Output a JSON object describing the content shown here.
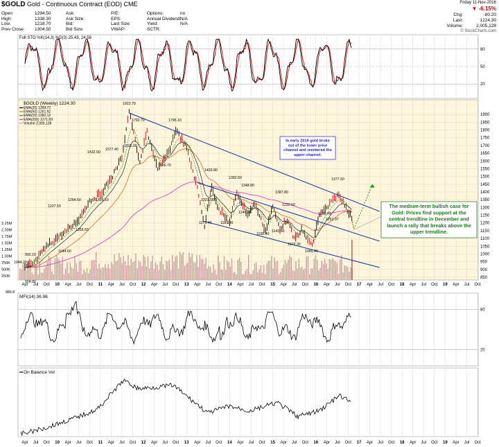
{
  "header": {
    "symbol": "$GOLD",
    "description": "Gold - Continuous Contract (EOD)",
    "exchange": "CME",
    "fields_left": [
      {
        "label": "Open:",
        "value": "1294.50"
      },
      {
        "label": "High:",
        "value": "1338.30"
      },
      {
        "label": "Low:",
        "value": "1218.70"
      },
      {
        "label": "Prev Close:",
        "value": "1304.50"
      }
    ],
    "fields_mid1": [
      {
        "label": "Ask:",
        "value": ""
      },
      {
        "label": "Ask Size:",
        "value": ""
      },
      {
        "label": "Bid:",
        "value": ""
      },
      {
        "label": "Bid Size:",
        "value": ""
      }
    ],
    "fields_mid2": [
      {
        "label": "P/E:",
        "value": ""
      },
      {
        "label": "EPS:",
        "value": ""
      },
      {
        "label": "Last Size:",
        "value": ""
      },
      {
        "label": "VWAP:",
        "value": ""
      }
    ],
    "fields_mid3": [
      {
        "label": "Options:",
        "value": "no"
      },
      {
        "label": "Annual Dividend:",
        "value": "N/A"
      },
      {
        "label": "Yield:",
        "value": "N/A"
      },
      {
        "label": "SCTR:",
        "value": ""
      }
    ],
    "date": "Friday 11-Nov-2016",
    "change_pct": "-6.15%",
    "chg_label": "Chg:",
    "chg_value": "-80.20",
    "last_label": "Last:",
    "last_value": "1224.30",
    "volume_label": "Volume:",
    "volume_value": "2,005,128",
    "brand": "© StockCharts.com"
  },
  "sto_panel": {
    "legend": "Full STO %K(14,3) %D(3) 25.43, 24.56",
    "levels": [
      "80",
      "50",
      "20"
    ]
  },
  "price_panel": {
    "legend_title": "$GOLD (Weekly) 1224.30",
    "legend_items": [
      {
        "text": "EMA(20) 1289.72",
        "color": "#000000"
      },
      {
        "text": "EMA(50) 1261.92",
        "color": "#d2691e"
      },
      {
        "text": "EMA(10) 1282.12",
        "color": "#228b22"
      },
      {
        "text": "EMA(200) 1271.69",
        "color": "#e040c0"
      },
      {
        "text": "Volume 2,005,128",
        "color": "#d9a0a0"
      }
    ],
    "price_ticks": [
      "1900",
      "1850",
      "1800",
      "1750",
      "1700",
      "1650",
      "1600",
      "1550",
      "1500",
      "1450",
      "1400",
      "1350",
      "1300",
      "1250",
      "1200",
      "1150",
      "1100",
      "1050",
      "1000",
      "950",
      "900",
      "850"
    ],
    "volume_ticks": [
      "2.25M",
      "2.00M",
      "1.75M",
      "1.50M",
      "1.25M",
      "1.00M",
      "750K",
      "500K",
      "250K"
    ],
    "peak_labels": [
      "1923.70",
      "1792.70",
      "1796.10",
      "1577.40",
      "1535.00",
      "1526.70",
      "1432.50",
      "1309.10",
      "1264.50",
      "1227.50",
      "1355.60",
      "1044.50",
      "1044.20",
      "992.10",
      "904.80",
      "889.8",
      "1433.80",
      "1321.50",
      "1179.40",
      "1181.40",
      "1392.60",
      "1348.80",
      "1387.80",
      "1246.20",
      "1232.60",
      "1158.40",
      "1143.60",
      "1072.30",
      "1045.40",
      "1191.70",
      "1377.50",
      "1251.07"
    ],
    "annotation_channel": "In early 2016 gold broke out of the lower price channel and reentered the upper channel.",
    "annotation_bullish": "The medium-term bullish case for Gold: Prices find support at the central trendline in December and launch a rally that breaks above the upper trendline."
  },
  "date_axis": [
    "Apr",
    "Jul",
    "Oct",
    "10",
    "Apr",
    "Jul",
    "Oct",
    "11",
    "Apr",
    "Jul",
    "Oct",
    "12",
    "Apr",
    "Jul",
    "Oct",
    "13",
    "Apr",
    "Jul",
    "Oct",
    "14",
    "Apr",
    "Jul",
    "Oct",
    "15",
    "Apr",
    "Jul",
    "Oct",
    "16",
    "Apr",
    "Jul",
    "Oct",
    "17",
    "Apr",
    "Jul",
    "Oct",
    "18",
    "Apr",
    "Jul",
    "Oct",
    "19",
    "Apr",
    "Jul",
    "Oct"
  ],
  "mfi_panel": {
    "legend": "MFI(14) 36.96",
    "levels": [
      "80",
      "20"
    ]
  },
  "obv_panel": {
    "legend": "On Balance Vol"
  },
  "colors": {
    "price_bg": "#fdf6dc",
    "channel": "#1e3fa0",
    "annotation_blue": "#1c1ccd",
    "annotation_green": "#1a7a1a",
    "negative": "#d00000",
    "sto_k": "#000000",
    "sto_d": "#d00000",
    "ema200": "#e040c0",
    "ema50": "#d2691e",
    "ema10": "#228b22",
    "volume": "#c8a0a0"
  },
  "chart_data": [
    {
      "type": "line",
      "title": "$GOLD (Weekly) 1224.30",
      "panel": "price",
      "x_dates": [
        "2009-04",
        "2009-07",
        "2009-10",
        "2010-01",
        "2010-04",
        "2010-07",
        "2010-10",
        "2011-01",
        "2011-04",
        "2011-07",
        "2011-09",
        "2011-12",
        "2012-02",
        "2012-05",
        "2012-08",
        "2012-10",
        "2013-01",
        "2013-04",
        "2013-06",
        "2013-08",
        "2013-10",
        "2014-01",
        "2014-03",
        "2014-06",
        "2014-08",
        "2014-11",
        "2015-01",
        "2015-03",
        "2015-05",
        "2015-07",
        "2015-09",
        "2015-12",
        "2016-02",
        "2016-04",
        "2016-07",
        "2016-09",
        "2016-11"
      ],
      "price": [
        904.8,
        950,
        1044.5,
        1100,
        1150,
        1220,
        1340,
        1380,
        1480,
        1620,
        1923.7,
        1577.4,
        1792.7,
        1535,
        1650,
        1796.1,
        1680,
        1420,
        1179.4,
        1433.8,
        1280,
        1200,
        1392.6,
        1250,
        1320,
        1143.6,
        1300,
        1160,
        1220,
        1090,
        1150,
        1045.4,
        1250,
        1290,
        1377.5,
        1320,
        1224.3
      ],
      "channel_lines": [
        {
          "name": "upper",
          "points": [
            [
              "2011-09",
              1910
            ],
            [
              "2016-11",
              1345
            ]
          ]
        },
        {
          "name": "middle",
          "points": [
            [
              "2013-04",
              1460
            ],
            [
              "2016-11",
              1140
            ]
          ]
        },
        {
          "name": "lower",
          "points": [
            [
              "2013-06",
              1210
            ],
            [
              "2016-11",
              960
            ]
          ]
        }
      ],
      "ylim": [
        850,
        1950
      ]
    },
    {
      "type": "line",
      "title": "Full STO %K(14,3) %D(3) 25.43, 24.56",
      "panel": "stochastic",
      "ylim": [
        0,
        100
      ],
      "last_k": 25.43,
      "last_d": 24.56
    },
    {
      "type": "line",
      "title": "MFI(14) 36.96",
      "panel": "mfi",
      "ylim": [
        0,
        100
      ],
      "last": 36.96
    }
  ]
}
